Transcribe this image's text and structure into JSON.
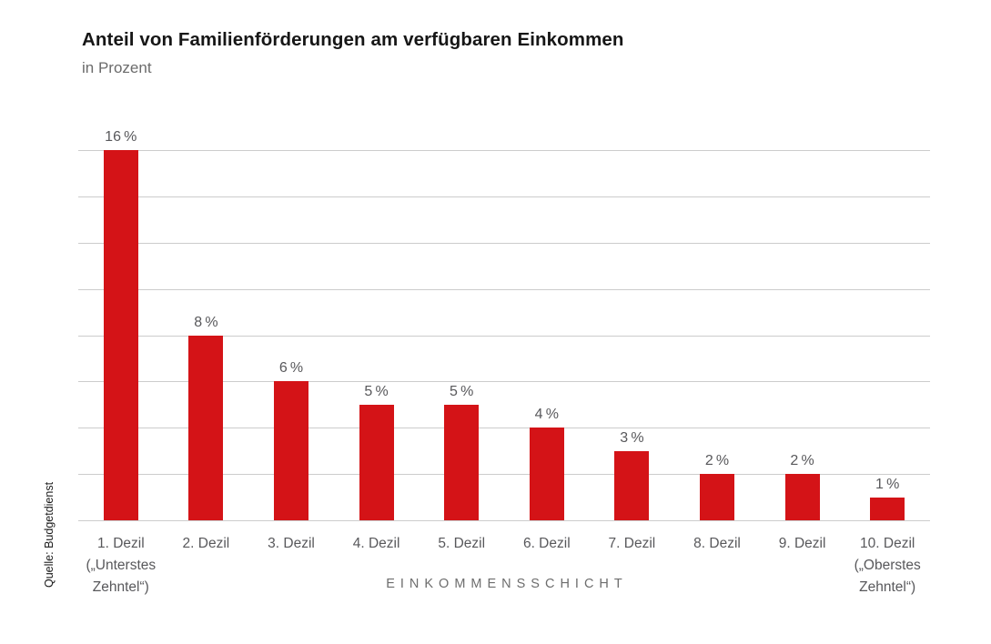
{
  "chart_data": {
    "type": "bar",
    "title": "Anteil von Familienförderungen am verfügbaren Einkommen",
    "subtitle": "in Prozent",
    "source": "Quelle: Budgetdienst",
    "xlabel": "EINKOMMENSSCHICHT",
    "categories": [
      [
        "1. Dezil",
        "(„Unterstes",
        "Zehntel“)"
      ],
      [
        "2. Dezil"
      ],
      [
        "3. Dezil"
      ],
      [
        "4. Dezil"
      ],
      [
        "5. Dezil"
      ],
      [
        "6. Dezil"
      ],
      [
        "7. Dezil"
      ],
      [
        "8. Dezil"
      ],
      [
        "9. Dezil"
      ],
      [
        "10. Dezil",
        "(„Oberstes",
        "Zehntel“)"
      ]
    ],
    "values": [
      16,
      8,
      6,
      5,
      5,
      4,
      3,
      2,
      2,
      1
    ],
    "value_labels": [
      "16 %",
      "8 %",
      "6 %",
      "5 %",
      "5 %",
      "4 %",
      "3 %",
      "2 %",
      "2 %",
      "1 %"
    ],
    "ylim": [
      0,
      16
    ],
    "grid_step": 2,
    "grid": true,
    "legend": false
  },
  "colors": {
    "bar": "#d41317",
    "gridline": "#cccccc",
    "label_text": "#58585b",
    "axis_title_text": "#6d6d6d",
    "title_text": "#161616",
    "subtitle_text": "#6b6b6b",
    "source_text": "#1a1a1a",
    "background": "#ffffff"
  }
}
